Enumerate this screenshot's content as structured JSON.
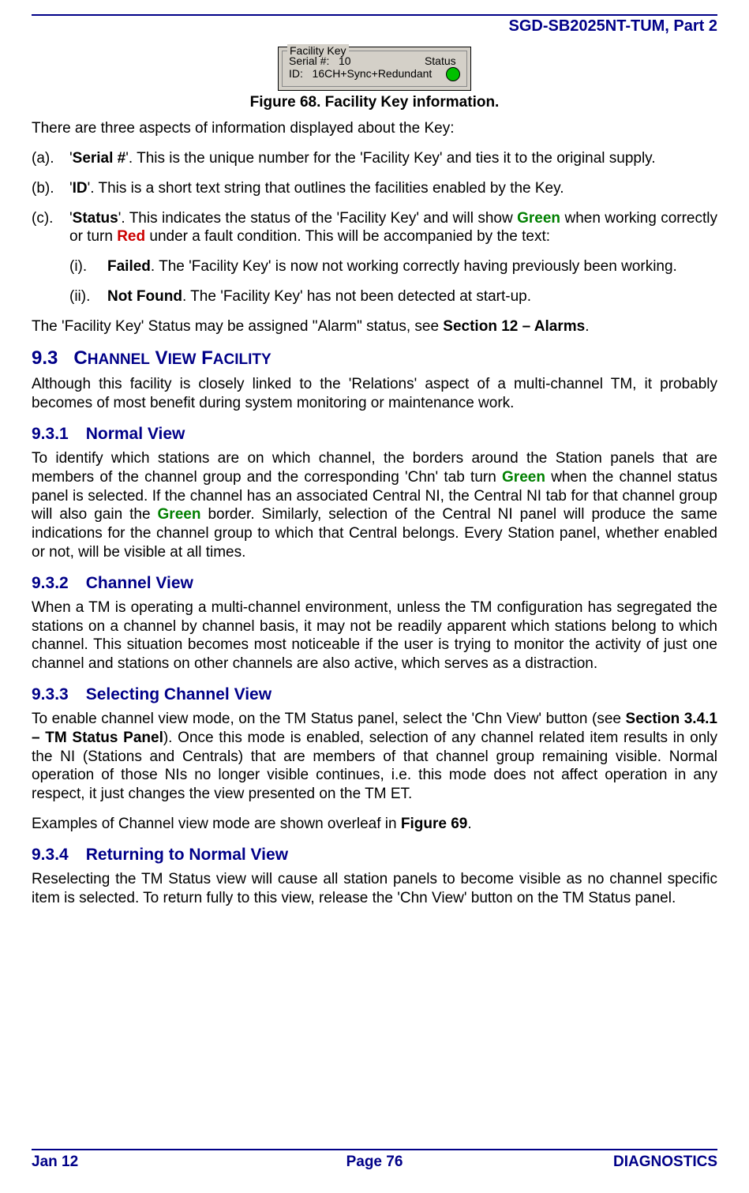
{
  "header": "SGD-SB2025NT-TUM, Part 2",
  "fig": {
    "legend": "Facility Key",
    "serialLabel": "Serial #:",
    "serialValue": "10",
    "statusLabel": "Status",
    "idLabel": "ID:",
    "idValue": "16CH+Sync+Redundant",
    "ledColor": "#00c000",
    "caption": "Figure 68.  Facility Key information."
  },
  "p_intro": "There are three aspects of information displayed about the Key:",
  "listA": {
    "marker": "(a).",
    "boldTerm": "Serial #",
    "rest": "'.  This is the unique number for the 'Facility Key' and ties it to the original supply."
  },
  "listB": {
    "marker": "(b).",
    "boldTerm": "ID",
    "rest": "'.  This is a short text string that outlines the facilities enabled by the Key."
  },
  "listC": {
    "marker": "(c).",
    "boldTerm": "Status",
    "lead": "'.   This indicates the status of the 'Facility Key' and will show ",
    "greenWord": "Green",
    "mid": " when working correctly or turn ",
    "redWord": "Red",
    "tail": " under a fault condition.  This will be accompanied by the text:"
  },
  "subI": {
    "marker": "(i).",
    "boldTerm": "Failed",
    "rest": ".  The 'Facility Key' is now not working correctly having previously been working."
  },
  "subII": {
    "marker": "(ii).",
    "boldTerm": "Not Found",
    "rest": ".  The 'Facility Key' has not been detected at start-up."
  },
  "p_alarm_pre": "The 'Facility Key' Status may be assigned \"Alarm\" status, see ",
  "p_alarm_bold": "Section 12 – Alarms",
  "p_alarm_post": ".",
  "s93": {
    "num": "9.3",
    "title": "Channel View Facility"
  },
  "p93": "Although this facility is closely linked to the 'Relations' aspect of a multi-channel TM, it probably becomes of most benefit during system monitoring or maintenance work.",
  "s931": {
    "num": "9.3.1",
    "title": "Normal View"
  },
  "p931a": "To identify which stations are on which channel, the borders around the Station panels that are members of the channel group and the corresponding 'Chn' tab turn ",
  "p931_green1": "Green",
  "p931b": " when the channel status panel is selected.  If the channel has an associated Central NI, the Central NI tab for that channel group will also gain the ",
  "p931_green2": "Green",
  "p931c": " border.  Similarly, selection of the Central NI panel will produce the same indications for the channel group to which that Central belongs.  Every Station panel, whether enabled or not, will be visible at all times.",
  "s932": {
    "num": "9.3.2",
    "title": "Channel View"
  },
  "p932": "When a TM is operating a multi-channel environment, unless the TM configuration has segregated the stations on a channel by channel basis, it may not be readily apparent which stations belong to which channel.  This situation becomes most noticeable if the user is trying to monitor the activity of just one channel and stations on other channels are also active, which serves as a distraction.",
  "s933": {
    "num": "9.3.3",
    "title": "Selecting Channel View"
  },
  "p933a": "To enable channel view mode, on the TM Status panel, select the 'Chn View' button (see ",
  "p933_bold": "Section 3.4.1 – TM Status Panel",
  "p933b": ").   Once this mode is enabled, selection of any channel related item results in only the NI (Stations and Centrals) that are members of that channel group remaining visible.  Normal operation of those NIs no longer visible continues, i.e. this mode does not affect operation in any respect, it just changes the view presented on the TM ET.",
  "p933c_pre": "Examples of Channel view mode are shown overleaf in ",
  "p933c_bold": "Figure 69",
  "p933c_post": ".",
  "s934": {
    "num": "9.3.4",
    "title": "Returning to Normal View"
  },
  "p934": "Reselecting the TM Status view will cause all station panels to become visible as no channel specific item is selected.   To return fully to this view, release the 'Chn View' button on the TM Status panel.",
  "footer": {
    "left": "Jan 12",
    "center": "Page 76",
    "right": "DIAGNOSTICS"
  }
}
